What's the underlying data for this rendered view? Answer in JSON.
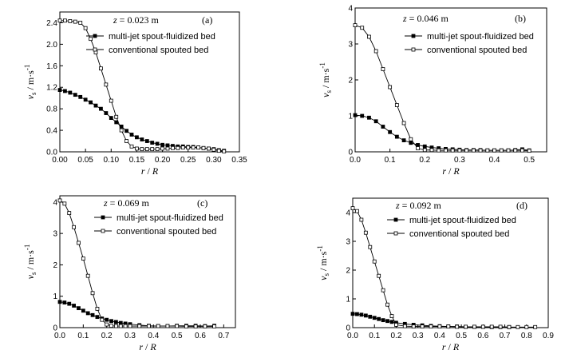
{
  "chart_data": [
    {
      "type": "line",
      "panel_label": "(a)",
      "annotation": "z = 0.023 m",
      "xlabel": "r / R",
      "ylabel": "v_s / m·s^-1",
      "xlim": [
        0,
        0.35
      ],
      "ylim": [
        0,
        2.6
      ],
      "xticks": [
        "0.00",
        "0.05",
        "0.10",
        "0.15",
        "0.20",
        "0.25",
        "0.30",
        "0.35"
      ],
      "yticks": [
        "0.0",
        "0.4",
        "0.8",
        "1.2",
        "1.6",
        "2.0",
        "2.4"
      ],
      "legend_position": "top-right",
      "series": [
        {
          "name": "multi-jet spout-fluidized bed",
          "marker": "filled-square",
          "x": [
            0.0,
            0.01,
            0.02,
            0.03,
            0.04,
            0.05,
            0.06,
            0.07,
            0.08,
            0.09,
            0.1,
            0.11,
            0.12,
            0.13,
            0.14,
            0.15,
            0.16,
            0.17,
            0.18,
            0.19,
            0.2,
            0.21,
            0.22,
            0.23,
            0.24,
            0.25,
            0.26,
            0.27,
            0.28,
            0.29,
            0.3,
            0.31,
            0.32
          ],
          "y": [
            1.15,
            1.13,
            1.1,
            1.06,
            1.02,
            0.97,
            0.92,
            0.86,
            0.8,
            0.72,
            0.63,
            0.55,
            0.47,
            0.39,
            0.32,
            0.27,
            0.23,
            0.2,
            0.17,
            0.15,
            0.13,
            0.12,
            0.11,
            0.1,
            0.1,
            0.09,
            0.09,
            0.08,
            0.07,
            0.06,
            0.05,
            0.03,
            0.02
          ]
        },
        {
          "name": "conventional spouted bed",
          "marker": "open-square",
          "x": [
            0.0,
            0.01,
            0.02,
            0.03,
            0.04,
            0.05,
            0.06,
            0.07,
            0.08,
            0.09,
            0.1,
            0.11,
            0.12,
            0.13,
            0.14,
            0.15,
            0.16,
            0.17,
            0.18,
            0.19,
            0.2,
            0.21,
            0.22,
            0.23,
            0.24,
            0.25,
            0.26,
            0.27,
            0.28,
            0.29,
            0.3,
            0.31,
            0.32
          ],
          "y": [
            2.44,
            2.44,
            2.43,
            2.42,
            2.4,
            2.3,
            2.1,
            1.85,
            1.55,
            1.25,
            0.95,
            0.65,
            0.4,
            0.2,
            0.1,
            0.06,
            0.05,
            0.05,
            0.05,
            0.05,
            0.06,
            0.06,
            0.07,
            0.07,
            0.08,
            0.08,
            0.08,
            0.08,
            0.07,
            0.06,
            0.04,
            0.02,
            0.01
          ]
        }
      ]
    },
    {
      "type": "line",
      "panel_label": "(b)",
      "annotation": "z = 0.046 m",
      "xlabel": "r / R",
      "ylabel": "v_s / m·s^-1",
      "xlim": [
        0,
        0.55
      ],
      "ylim": [
        0,
        4
      ],
      "xticks": [
        "0.0",
        "0.1",
        "0.2",
        "0.3",
        "0.4",
        "0.5"
      ],
      "yticks": [
        "0",
        "1",
        "2",
        "3",
        "4"
      ],
      "legend_position": "top-right",
      "series": [
        {
          "name": "multi-jet spout-fluidized bed",
          "marker": "filled-square",
          "x": [
            0.0,
            0.02,
            0.04,
            0.06,
            0.08,
            0.1,
            0.12,
            0.14,
            0.16,
            0.18,
            0.2,
            0.22,
            0.24,
            0.26,
            0.28,
            0.3,
            0.32,
            0.34,
            0.36,
            0.38,
            0.4,
            0.42,
            0.44,
            0.46,
            0.48,
            0.5
          ],
          "y": [
            1.02,
            1.0,
            0.95,
            0.85,
            0.7,
            0.55,
            0.42,
            0.32,
            0.25,
            0.19,
            0.15,
            0.12,
            0.1,
            0.08,
            0.07,
            0.06,
            0.05,
            0.05,
            0.05,
            0.04,
            0.04,
            0.04,
            0.04,
            0.05,
            0.07,
            0.04
          ]
        },
        {
          "name": "conventional spouted bed",
          "marker": "open-square",
          "x": [
            0.0,
            0.02,
            0.04,
            0.06,
            0.08,
            0.1,
            0.12,
            0.14,
            0.16,
            0.18,
            0.2,
            0.22,
            0.24,
            0.26,
            0.28,
            0.3,
            0.32,
            0.34,
            0.36,
            0.38,
            0.4,
            0.42,
            0.44,
            0.46,
            0.48,
            0.5
          ],
          "y": [
            3.52,
            3.45,
            3.2,
            2.8,
            2.3,
            1.8,
            1.3,
            0.8,
            0.35,
            0.1,
            0.05,
            0.05,
            0.04,
            0.04,
            0.04,
            0.04,
            0.04,
            0.04,
            0.04,
            0.04,
            0.04,
            0.04,
            0.04,
            0.04,
            0.04,
            0.03
          ]
        }
      ]
    },
    {
      "type": "line",
      "panel_label": "(c)",
      "annotation": "z = 0.069 m",
      "xlabel": "r / R",
      "ylabel": "v_s / m·s^-1",
      "xlim": [
        0,
        0.75
      ],
      "ylim": [
        0,
        4.2
      ],
      "xticks": [
        "0.0",
        "0.1",
        "0.2",
        "0.3",
        "0.4",
        "0.5",
        "0.6",
        "0.7"
      ],
      "yticks": [
        "0",
        "1",
        "2",
        "3",
        "4"
      ],
      "legend_position": "top-right",
      "series": [
        {
          "name": "multi-jet spout-fluidized bed",
          "marker": "filled-square",
          "x": [
            0.0,
            0.02,
            0.04,
            0.06,
            0.08,
            0.1,
            0.12,
            0.14,
            0.16,
            0.18,
            0.2,
            0.22,
            0.24,
            0.26,
            0.28,
            0.3,
            0.34,
            0.38,
            0.42,
            0.46,
            0.5,
            0.54,
            0.58,
            0.62,
            0.66
          ],
          "y": [
            0.82,
            0.8,
            0.76,
            0.7,
            0.62,
            0.54,
            0.46,
            0.4,
            0.34,
            0.29,
            0.25,
            0.21,
            0.18,
            0.15,
            0.13,
            0.11,
            0.08,
            0.06,
            0.05,
            0.05,
            0.06,
            0.06,
            0.06,
            0.05,
            0.06
          ]
        },
        {
          "name": "conventional spouted bed",
          "marker": "open-square",
          "x": [
            0.0,
            0.02,
            0.04,
            0.06,
            0.08,
            0.1,
            0.12,
            0.14,
            0.16,
            0.18,
            0.2,
            0.22,
            0.24,
            0.26,
            0.28,
            0.3,
            0.34,
            0.38,
            0.42,
            0.46,
            0.5,
            0.54,
            0.58,
            0.62,
            0.66
          ],
          "y": [
            4.05,
            3.95,
            3.65,
            3.2,
            2.7,
            2.2,
            1.65,
            1.1,
            0.6,
            0.25,
            0.1,
            0.06,
            0.05,
            0.05,
            0.05,
            0.05,
            0.05,
            0.05,
            0.05,
            0.05,
            0.05,
            0.04,
            0.04,
            0.04,
            0.04
          ]
        }
      ]
    },
    {
      "type": "line",
      "panel_label": "(d)",
      "annotation": "z = 0.092 m",
      "xlabel": "r / R",
      "ylabel": "v_s / m·s^-1",
      "xlim": [
        0,
        0.9
      ],
      "ylim": [
        0,
        4.5
      ],
      "xticks": [
        "0.0",
        "0.1",
        "0.2",
        "0.3",
        "0.4",
        "0.5",
        "0.6",
        "0.7",
        "0.8",
        "0.9"
      ],
      "yticks": [
        "0",
        "1",
        "2",
        "3",
        "4"
      ],
      "legend_position": "top-right",
      "series": [
        {
          "name": "multi-jet spout-fluidized bed",
          "marker": "filled-square",
          "x": [
            0.0,
            0.02,
            0.04,
            0.06,
            0.08,
            0.1,
            0.12,
            0.14,
            0.16,
            0.18,
            0.2,
            0.24,
            0.28,
            0.32,
            0.36,
            0.4,
            0.44,
            0.48,
            0.52,
            0.56,
            0.6,
            0.64,
            0.68,
            0.72
          ],
          "y": [
            0.48,
            0.47,
            0.45,
            0.42,
            0.38,
            0.34,
            0.3,
            0.26,
            0.23,
            0.2,
            0.17,
            0.13,
            0.1,
            0.08,
            0.06,
            0.05,
            0.04,
            0.04,
            0.03,
            0.03,
            0.03,
            0.02,
            0.02,
            0.02
          ]
        },
        {
          "name": "conventional spouted bed",
          "marker": "open-square",
          "x": [
            0.0,
            0.02,
            0.04,
            0.06,
            0.08,
            0.1,
            0.12,
            0.14,
            0.16,
            0.18,
            0.2,
            0.24,
            0.28,
            0.32,
            0.36,
            0.4,
            0.44,
            0.48,
            0.52,
            0.56,
            0.6,
            0.64,
            0.68,
            0.72,
            0.76,
            0.8,
            0.84
          ],
          "y": [
            4.15,
            4.05,
            3.75,
            3.3,
            2.8,
            2.3,
            1.8,
            1.3,
            0.8,
            0.4,
            0.1,
            0.05,
            0.04,
            0.04,
            0.04,
            0.04,
            0.04,
            0.03,
            0.03,
            0.03,
            0.03,
            0.03,
            0.03,
            0.02,
            0.02,
            0.02,
            0.02
          ]
        }
      ]
    }
  ]
}
